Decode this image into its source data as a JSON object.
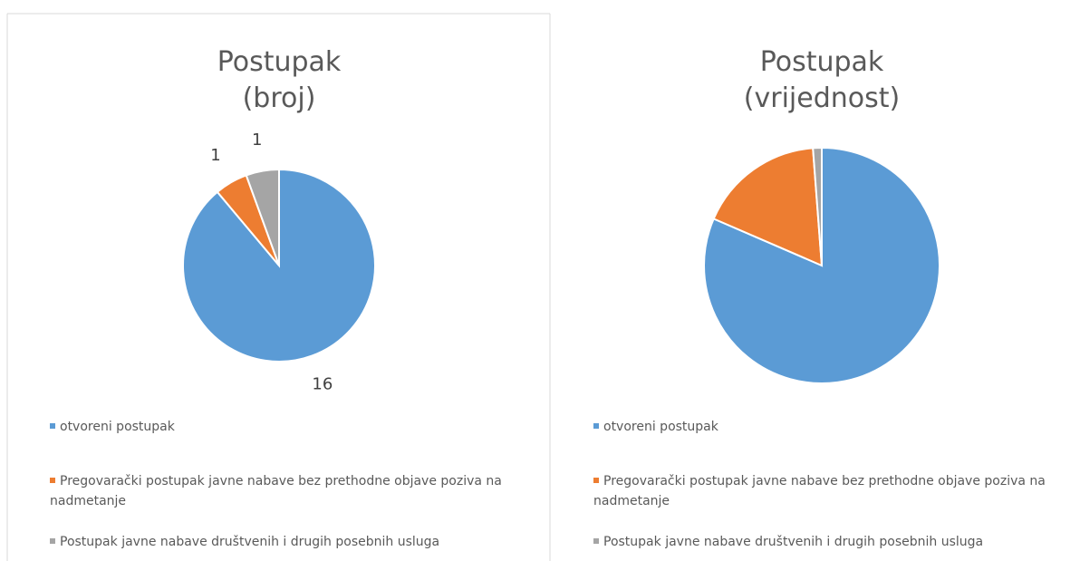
{
  "chart_data": [
    {
      "type": "pie",
      "title": [
        "Postupak",
        "(broj)"
      ],
      "categories": [
        "otvoreni postupak",
        "Pregovarački postupak javne nabave bez prethodne objave poziva na nadmetanje",
        "Postupak javne nabave društvenih i drugih posebnih usluga"
      ],
      "values": [
        16,
        1,
        1
      ],
      "colors": [
        "#5b9bd5",
        "#ed7d31",
        "#a5a5a5"
      ],
      "data_labels": true
    },
    {
      "type": "pie",
      "title": [
        "Postupak",
        "(vrijednost)"
      ],
      "categories": [
        "otvoreni postupak",
        "Pregovarački postupak javne nabave bez prethodne objave poziva na nadmetanje",
        "Postupak javne nabave društvenih i drugih posebnih usluga"
      ],
      "values": [
        81.5,
        17.3,
        1.2
      ],
      "colors": [
        "#5b9bd5",
        "#ed7d31",
        "#a5a5a5"
      ],
      "data_labels": false
    }
  ]
}
